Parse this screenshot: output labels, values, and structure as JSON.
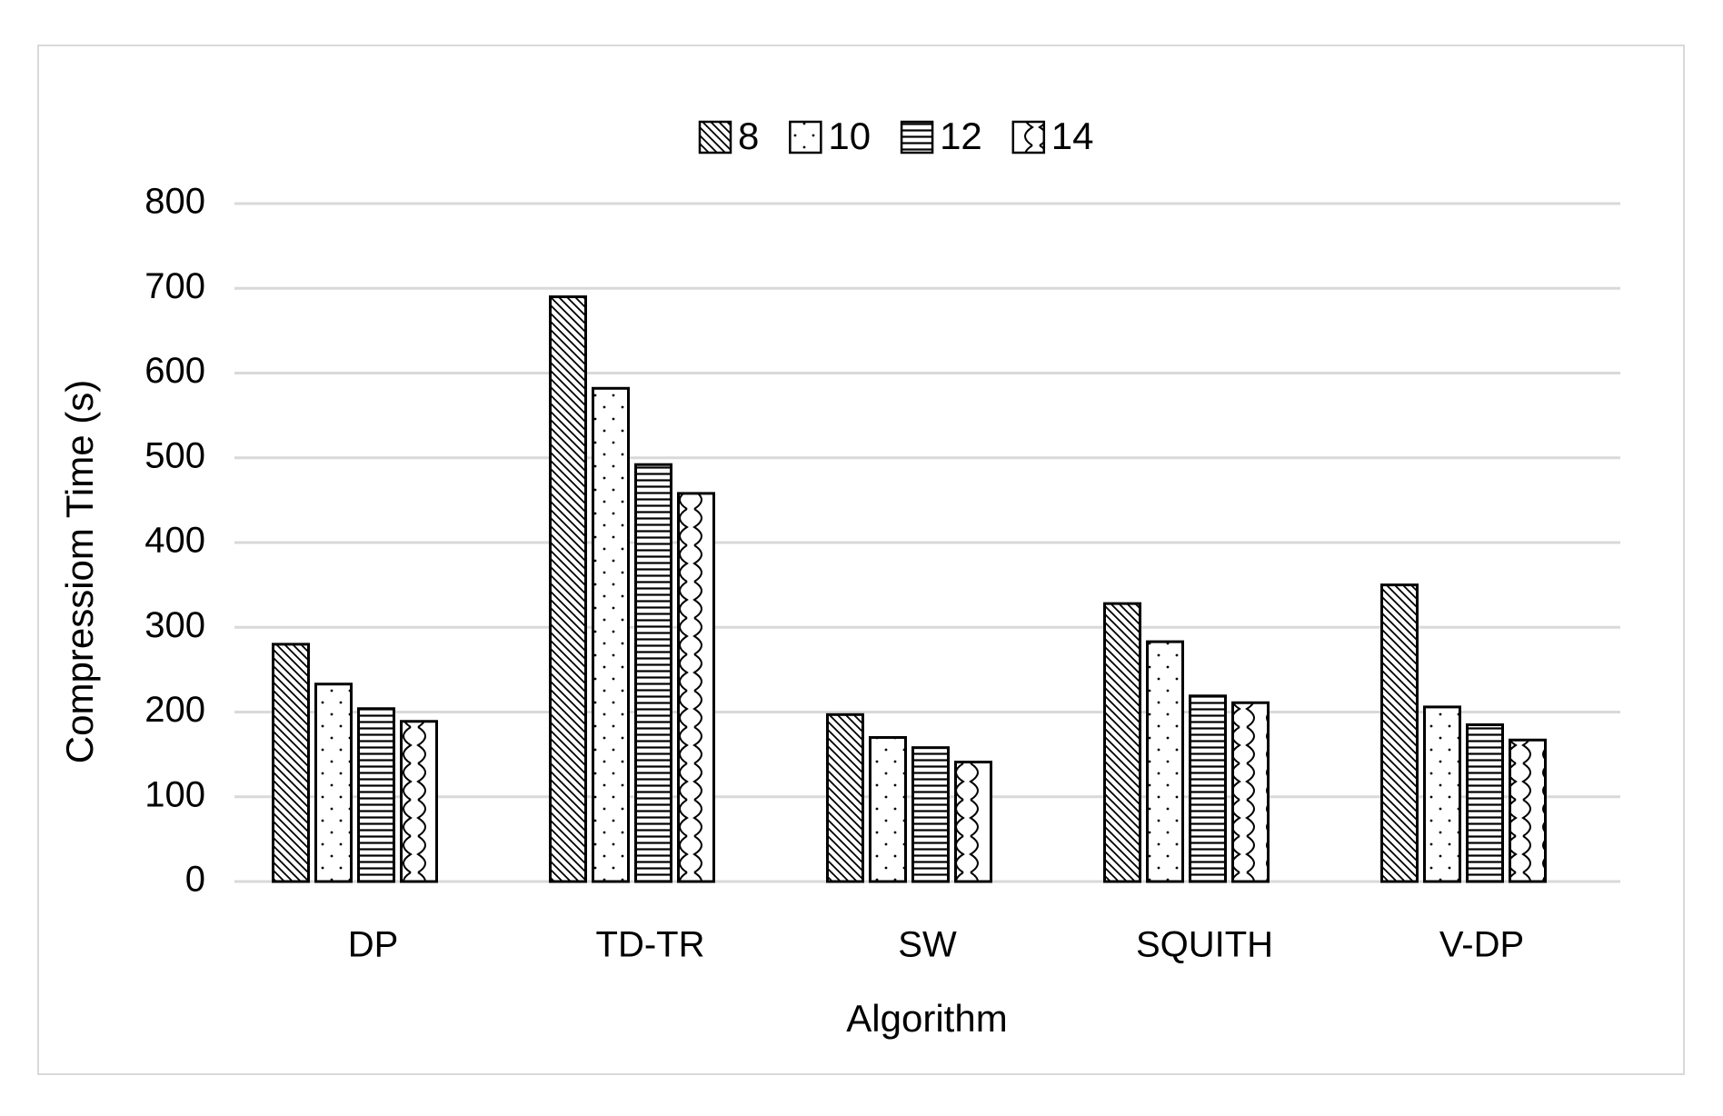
{
  "chart_data": {
    "type": "bar",
    "x_label": "Algorithm",
    "y_label": "Compressiom Time  (s)",
    "categories": [
      "DP",
      "TD-TR",
      "SW",
      "SQUITH",
      "V-DP"
    ],
    "series": [
      {
        "name": "8",
        "color": "#000000",
        "pattern": "diagonal",
        "values": [
          280,
          690,
          197,
          328,
          350
        ]
      },
      {
        "name": "10",
        "color": "#000000",
        "pattern": "dots",
        "values": [
          233,
          582,
          170,
          283,
          206
        ]
      },
      {
        "name": "12",
        "color": "#000000",
        "pattern": "horizontal",
        "values": [
          204,
          492,
          158,
          219,
          185
        ]
      },
      {
        "name": "14",
        "color": "#000000",
        "pattern": "wave",
        "values": [
          189,
          458,
          141,
          211,
          167
        ]
      }
    ],
    "ylim": [
      0,
      800
    ],
    "yticks": [
      0,
      100,
      200,
      300,
      400,
      500,
      600,
      700,
      800
    ],
    "grid": true,
    "legend": "top"
  }
}
